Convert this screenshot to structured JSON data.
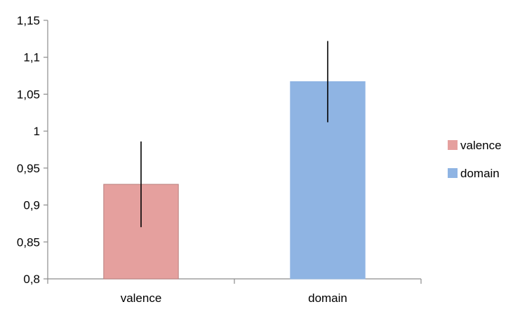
{
  "chart_data": {
    "type": "bar",
    "title": "",
    "xlabel": "",
    "ylabel": "",
    "categories": [
      "valence",
      "domain"
    ],
    "values": [
      0.928,
      1.067
    ],
    "error": [
      0.058,
      0.055
    ],
    "colors": [
      "#e5a09e",
      "#8fb4e3"
    ],
    "edge_colors": [
      "#b87f7e",
      "#8fb4e3"
    ],
    "ylim": [
      0.8,
      1.15
    ],
    "yticks": [
      0.8,
      0.85,
      0.9,
      0.95,
      1.0,
      1.05,
      1.1,
      1.15
    ],
    "ytick_labels": [
      "0,8",
      "0,85",
      "0,9",
      "0,95",
      "1",
      "1,05",
      "1,1",
      "1,15"
    ],
    "grid": false,
    "legend": {
      "position": "right",
      "entries": [
        {
          "name": "valence",
          "color": "#e5a09e"
        },
        {
          "name": "domain",
          "color": "#8fb4e3"
        }
      ]
    }
  }
}
